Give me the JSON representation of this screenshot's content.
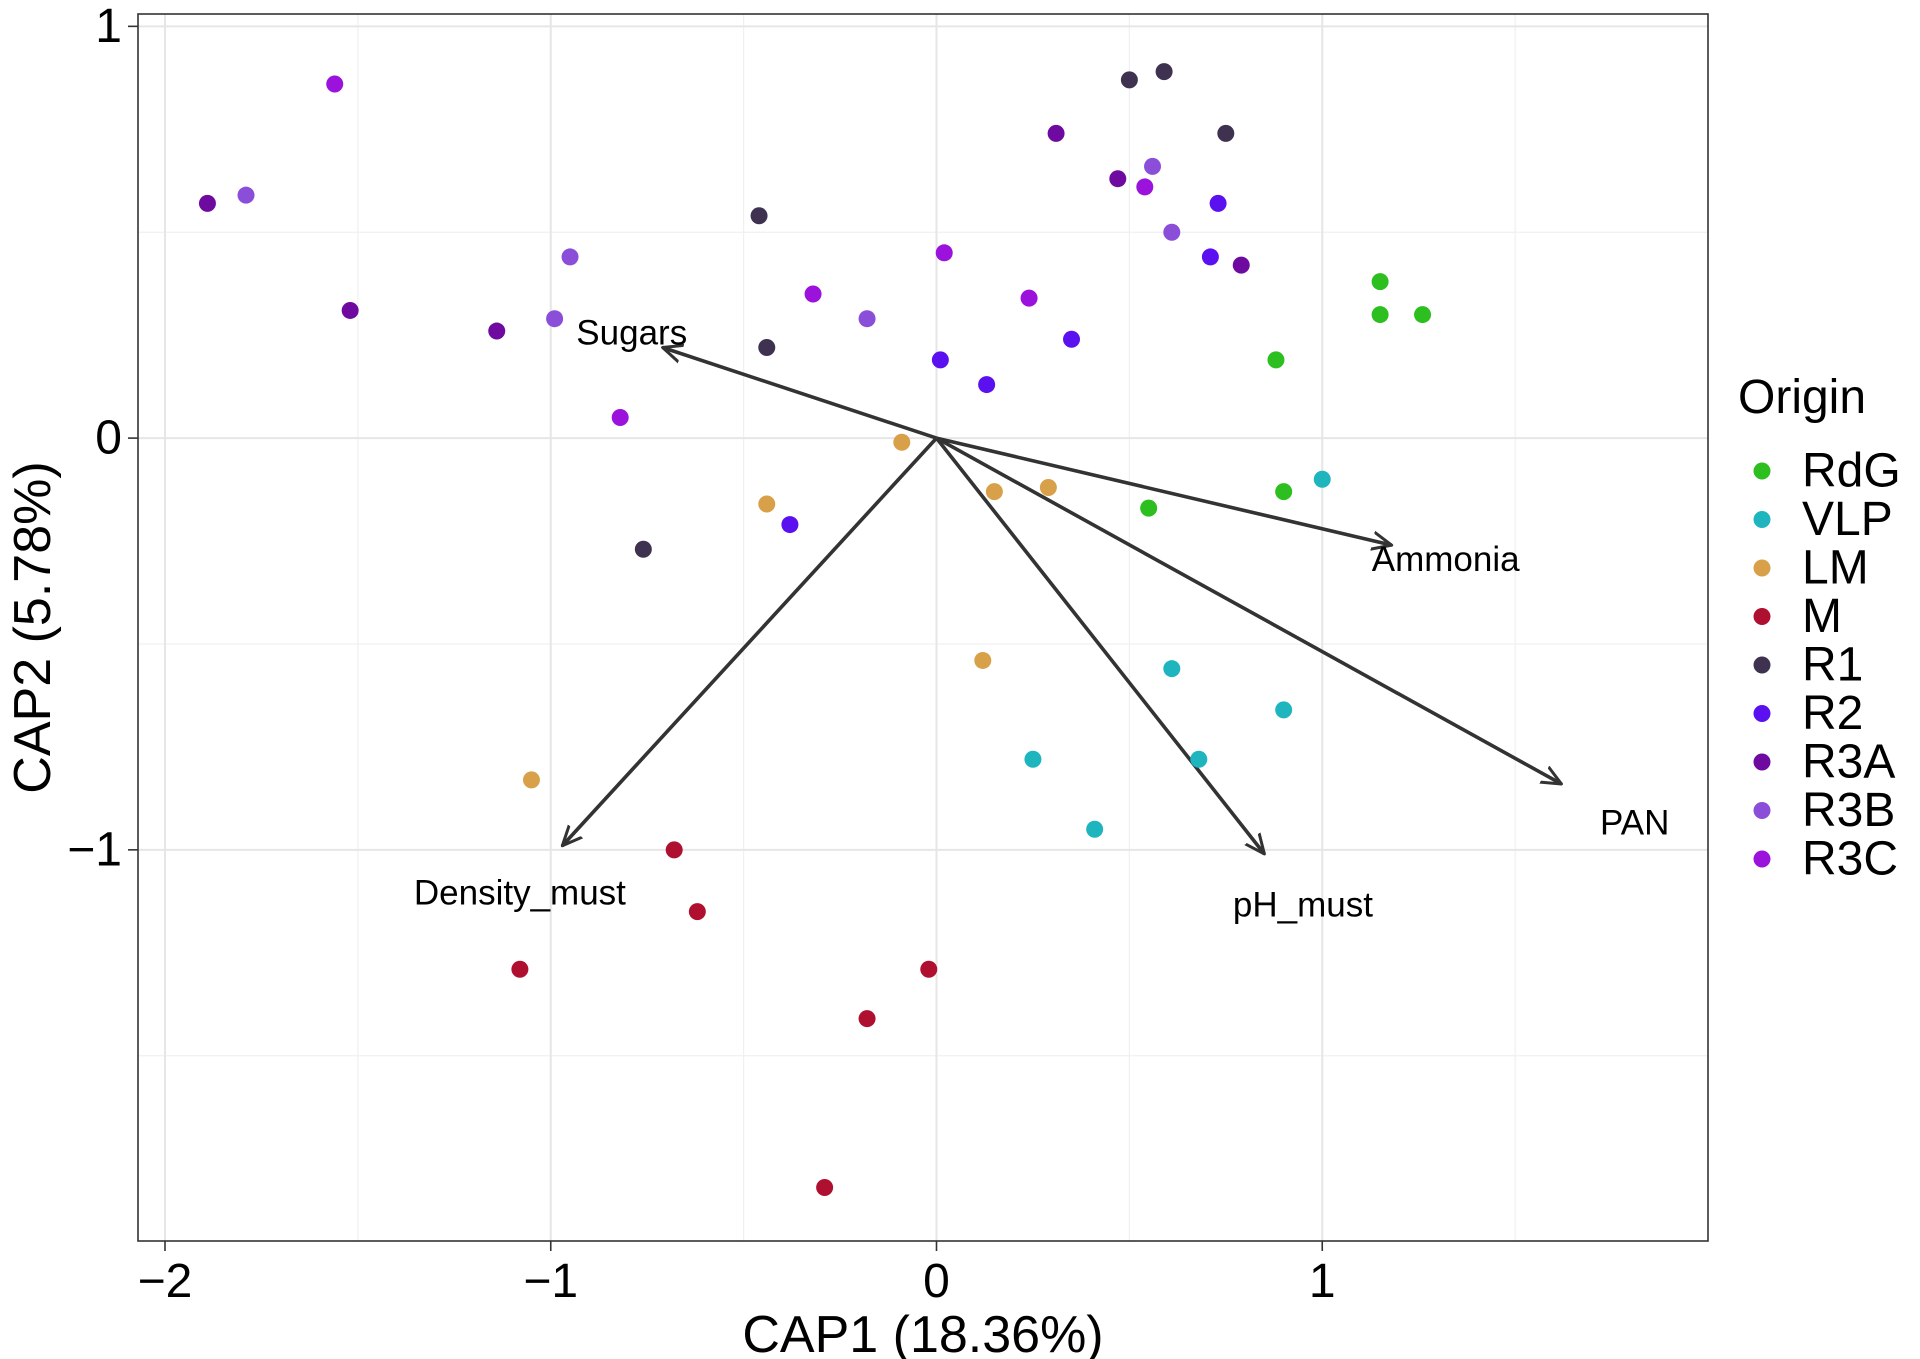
{
  "chart_data": {
    "type": "scatter",
    "xlabel": "CAP1 (18.36%)",
    "ylabel": "CAP2 (5.78%)",
    "xlim": [
      -2.07,
      2.0
    ],
    "ylim": [
      -1.95,
      1.03
    ],
    "x_ticks": [
      {
        "value": -2,
        "label": "−2"
      },
      {
        "value": -1,
        "label": "−1"
      },
      {
        "value": 0,
        "label": "0"
      },
      {
        "value": 1,
        "label": "1"
      }
    ],
    "y_ticks": [
      {
        "value": 1,
        "label": "1"
      },
      {
        "value": 0,
        "label": "0"
      },
      {
        "value": -1,
        "label": "−1"
      }
    ],
    "x_minor_grid": [
      -1.5,
      -0.5,
      0.5,
      1.5
    ],
    "y_minor_grid": [
      0.5,
      -0.5,
      -1.5
    ],
    "grid": true,
    "legend": {
      "title": "Origin",
      "position": "right",
      "entries": [
        {
          "label": "RdG",
          "color": "#2CBF1F"
        },
        {
          "label": "VLP",
          "color": "#1FB5BF"
        },
        {
          "label": "LM",
          "color": "#D9A04A"
        },
        {
          "label": "M",
          "color": "#B0102F"
        },
        {
          "label": "R1",
          "color": "#3F3250"
        },
        {
          "label": "R2",
          "color": "#5B10F0"
        },
        {
          "label": "R3A",
          "color": "#6E0AA0"
        },
        {
          "label": "R3B",
          "color": "#8A4ED9"
        },
        {
          "label": "R3C",
          "color": "#9B12DC"
        }
      ]
    },
    "series": [
      {
        "name": "RdG",
        "color": "#2CBF1F",
        "points": [
          [
            1.15,
            0.38
          ],
          [
            1.15,
            0.3
          ],
          [
            1.26,
            0.3
          ],
          [
            0.88,
            0.19
          ],
          [
            0.55,
            -0.17
          ],
          [
            0.9,
            -0.13
          ]
        ]
      },
      {
        "name": "VLP",
        "color": "#1FB5BF",
        "points": [
          [
            1.0,
            -0.1
          ],
          [
            0.61,
            -0.56
          ],
          [
            0.9,
            -0.66
          ],
          [
            0.68,
            -0.78
          ],
          [
            0.25,
            -0.78
          ],
          [
            0.41,
            -0.95
          ]
        ]
      },
      {
        "name": "LM",
        "color": "#D9A04A",
        "points": [
          [
            -0.09,
            -0.01
          ],
          [
            0.29,
            -0.12
          ],
          [
            0.15,
            -0.13
          ],
          [
            -0.44,
            -0.16
          ],
          [
            0.12,
            -0.54
          ],
          [
            -1.05,
            -0.83
          ]
        ]
      },
      {
        "name": "M",
        "color": "#B0102F",
        "points": [
          [
            -0.68,
            -1.0
          ],
          [
            -0.62,
            -1.15
          ],
          [
            -1.08,
            -1.29
          ],
          [
            -0.02,
            -1.29
          ],
          [
            -0.18,
            -1.41
          ],
          [
            -0.29,
            -1.82
          ]
        ]
      },
      {
        "name": "R1",
        "color": "#3F3250",
        "points": [
          [
            0.5,
            0.87
          ],
          [
            0.59,
            0.89
          ],
          [
            0.75,
            0.74
          ],
          [
            -0.46,
            0.54
          ],
          [
            -0.44,
            0.22
          ],
          [
            -0.76,
            -0.27
          ]
        ]
      },
      {
        "name": "R2",
        "color": "#5B10F0",
        "points": [
          [
            0.73,
            0.57
          ],
          [
            0.71,
            0.44
          ],
          [
            0.35,
            0.24
          ],
          [
            0.01,
            0.19
          ],
          [
            0.13,
            0.13
          ],
          [
            -0.38,
            -0.21
          ]
        ]
      },
      {
        "name": "R3A",
        "color": "#6E0AA0",
        "points": [
          [
            0.31,
            0.74
          ],
          [
            0.47,
            0.63
          ],
          [
            0.79,
            0.42
          ],
          [
            -1.89,
            0.57
          ],
          [
            -1.52,
            0.31
          ],
          [
            -1.14,
            0.26
          ]
        ]
      },
      {
        "name": "R3B",
        "color": "#8A4ED9",
        "points": [
          [
            0.56,
            0.66
          ],
          [
            0.61,
            0.5
          ],
          [
            -0.18,
            0.29
          ],
          [
            -1.79,
            0.59
          ],
          [
            -0.95,
            0.44
          ],
          [
            -0.99,
            0.29
          ]
        ]
      },
      {
        "name": "R3C",
        "color": "#9B12DC",
        "points": [
          [
            -1.56,
            0.86
          ],
          [
            0.54,
            0.61
          ],
          [
            0.02,
            0.45
          ],
          [
            -0.32,
            0.35
          ],
          [
            0.24,
            0.34
          ],
          [
            -0.82,
            0.05
          ]
        ]
      }
    ],
    "arrows": [
      {
        "label": "Sugars",
        "end": [
          -0.71,
          0.22
        ],
        "label_pos": [
          -0.79,
          0.25
        ]
      },
      {
        "label": "Ammonia",
        "end": [
          1.18,
          -0.26
        ],
        "label_pos": [
          1.32,
          -0.3
        ]
      },
      {
        "label": "PAN",
        "end": [
          1.62,
          -0.84
        ],
        "label_pos": [
          1.81,
          -0.94
        ]
      },
      {
        "label": "pH_must",
        "end": [
          0.85,
          -1.01
        ],
        "label_pos": [
          0.95,
          -1.14
        ]
      },
      {
        "label": "Density_must",
        "end": [
          -0.97,
          -0.99
        ],
        "label_pos": [
          -1.08,
          -1.11
        ]
      }
    ]
  }
}
